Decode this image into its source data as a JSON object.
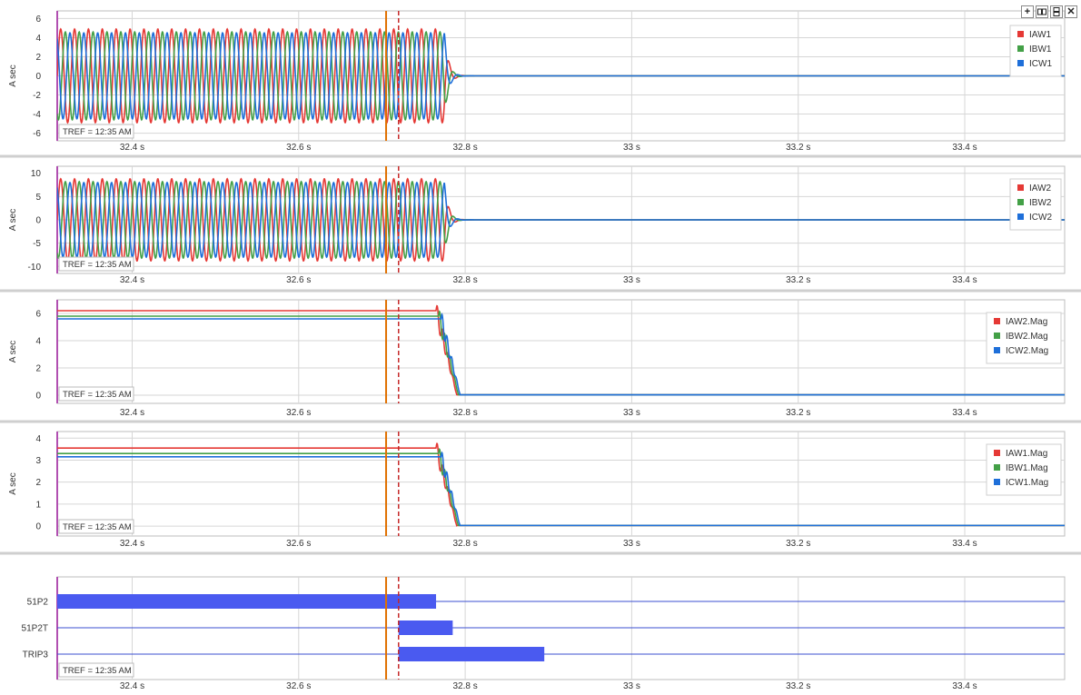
{
  "toolbar": {
    "add_icon": "plus-icon",
    "side_by_side_icon": "columns-icon",
    "stacked_icon": "rows-icon",
    "close_icon": "close-icon"
  },
  "colors": {
    "red": "#e53935",
    "green": "#43a047",
    "blue": "#1e6fd9",
    "cursor_solid": "#e07000",
    "cursor_dashed": "#c62828",
    "left_axis": "#b14fb1",
    "bar_fill": "#4a5af0",
    "bar_line": "#3b4fd0"
  },
  "cursors": {
    "solid_t": 32.705,
    "dashed_t": 32.72
  },
  "chart_data": [
    {
      "type": "line",
      "ylabel": "A sec",
      "ylim": [
        -6.8,
        6.8
      ],
      "yticks": [
        6,
        4,
        2,
        0,
        -2,
        -4,
        -6
      ],
      "xlim": [
        32.31,
        33.52
      ],
      "xticks": [
        32.4,
        32.6,
        32.8,
        33.0,
        33.2,
        33.4
      ],
      "xtick_labels": [
        "32.4 s",
        "32.6 s",
        "32.8 s",
        "33 s",
        "33.2 s",
        "33.4 s"
      ],
      "tref": "TREF = 12:35 AM",
      "legend_position": "top-right",
      "fault_end_s": 32.775,
      "frequency_hz": 60,
      "series": [
        {
          "name": "IAW1",
          "color": "red",
          "waveform": "sine",
          "amplitude": 4.9,
          "phase_deg": 0
        },
        {
          "name": "IBW1",
          "color": "green",
          "waveform": "sine",
          "amplitude": 4.6,
          "phase_deg": -120
        },
        {
          "name": "ICW1",
          "color": "blue",
          "waveform": "sine",
          "amplitude": 4.5,
          "phase_deg": 120
        }
      ]
    },
    {
      "type": "line",
      "ylabel": "A sec",
      "ylim": [
        -11.5,
        11.5
      ],
      "yticks": [
        10,
        5,
        0,
        -5,
        -10
      ],
      "xlim": [
        32.31,
        33.52
      ],
      "xticks": [
        32.4,
        32.6,
        32.8,
        33.0,
        33.2,
        33.4
      ],
      "xtick_labels": [
        "32.4 s",
        "32.6 s",
        "32.8 s",
        "33 s",
        "33.2 s",
        "33.4 s"
      ],
      "tref": "TREF = 12:35 AM",
      "legend_position": "right",
      "fault_end_s": 32.775,
      "frequency_hz": 60,
      "series": [
        {
          "name": "IAW2",
          "color": "red",
          "waveform": "sine",
          "amplitude": 8.8,
          "phase_deg": 0
        },
        {
          "name": "IBW2",
          "color": "green",
          "waveform": "sine",
          "amplitude": 8.2,
          "phase_deg": -120
        },
        {
          "name": "ICW2",
          "color": "blue",
          "waveform": "sine",
          "amplitude": 8.0,
          "phase_deg": 120
        }
      ]
    },
    {
      "type": "line",
      "ylabel": "A sec",
      "ylim": [
        -0.6,
        7.0
      ],
      "yticks": [
        6,
        4,
        2,
        0
      ],
      "xlim": [
        32.31,
        33.52
      ],
      "xticks": [
        32.4,
        32.6,
        32.8,
        33.0,
        33.2,
        33.4
      ],
      "xtick_labels": [
        "32.4 s",
        "32.6 s",
        "32.8 s",
        "33 s",
        "33.2 s",
        "33.4 s"
      ],
      "tref": "TREF = 12:35 AM",
      "legend_position": "right",
      "decay_start_s": 32.765,
      "decay_end_s": 32.79,
      "series": [
        {
          "name": "IAW2.Mag",
          "color": "red",
          "waveform": "magnitude",
          "level": 6.2
        },
        {
          "name": "IBW2.Mag",
          "color": "green",
          "waveform": "magnitude",
          "level": 5.8
        },
        {
          "name": "ICW2.Mag",
          "color": "blue",
          "waveform": "magnitude",
          "level": 5.6
        }
      ]
    },
    {
      "type": "line",
      "ylabel": "A sec",
      "ylim": [
        -0.45,
        4.3
      ],
      "yticks": [
        4,
        3,
        2,
        1,
        0
      ],
      "xlim": [
        32.31,
        33.52
      ],
      "xticks": [
        32.4,
        32.6,
        32.8,
        33.0,
        33.2,
        33.4
      ],
      "xtick_labels": [
        "32.4 s",
        "32.6 s",
        "32.8 s",
        "33 s",
        "33.2 s",
        "33.4 s"
      ],
      "tref": "TREF = 12:35 AM",
      "legend_position": "right",
      "decay_start_s": 32.765,
      "decay_end_s": 32.79,
      "series": [
        {
          "name": "IAW1.Mag",
          "color": "red",
          "waveform": "magnitude",
          "level": 3.55
        },
        {
          "name": "IBW1.Mag",
          "color": "green",
          "waveform": "magnitude",
          "level": 3.3
        },
        {
          "name": "ICW1.Mag",
          "color": "blue",
          "waveform": "magnitude",
          "level": 3.15
        }
      ]
    },
    {
      "type": "digital",
      "xlim": [
        32.31,
        33.52
      ],
      "xticks": [
        32.4,
        32.6,
        32.8,
        33.0,
        33.2,
        33.4
      ],
      "xtick_labels": [
        "32.4 s",
        "32.6 s",
        "32.8 s",
        "33 s",
        "33.2 s",
        "33.4 s"
      ],
      "tref": "TREF = 12:35 AM",
      "channels": [
        {
          "name": "51P2",
          "intervals": [
            [
              32.31,
              32.765
            ]
          ]
        },
        {
          "name": "51P2T",
          "intervals": [
            [
              32.72,
              32.785
            ]
          ]
        },
        {
          "name": "TRIP3",
          "intervals": [
            [
              32.72,
              32.895
            ]
          ]
        }
      ]
    }
  ]
}
